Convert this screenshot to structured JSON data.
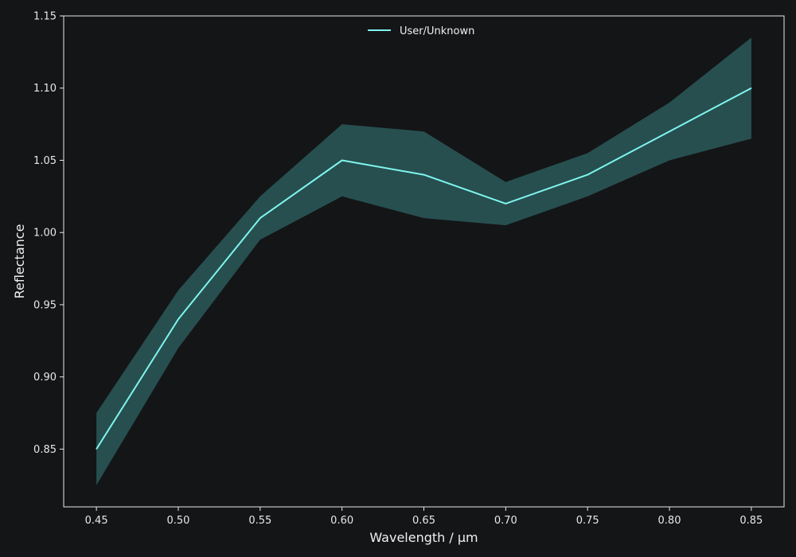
{
  "chart_data": {
    "type": "line",
    "title": "",
    "xlabel": "Wavelength / μm",
    "ylabel": "Reflectance",
    "xlim": [
      0.43,
      0.87
    ],
    "ylim": [
      0.81,
      1.15
    ],
    "x_ticks": [
      "0.45",
      "0.50",
      "0.55",
      "0.60",
      "0.65",
      "0.70",
      "0.75",
      "0.80",
      "0.85"
    ],
    "y_ticks": [
      "0.85",
      "0.90",
      "0.95",
      "1.00",
      "1.05",
      "1.10",
      "1.15"
    ],
    "grid": false,
    "legend_position": "top-center",
    "colors": {
      "background": "#141517",
      "axes": "#e8e8e8",
      "line": "#7ff5f0",
      "band": "#274f4f"
    },
    "series": [
      {
        "name": "User/Unknown",
        "x": [
          0.45,
          0.5,
          0.55,
          0.6,
          0.65,
          0.7,
          0.75,
          0.8,
          0.85
        ],
        "y": [
          0.85,
          0.94,
          1.01,
          1.05,
          1.04,
          1.02,
          1.04,
          1.07,
          1.1
        ],
        "lower": [
          0.825,
          0.92,
          0.995,
          1.025,
          1.01,
          1.005,
          1.025,
          1.05,
          1.065
        ],
        "upper": [
          0.875,
          0.96,
          1.025,
          1.075,
          1.07,
          1.035,
          1.055,
          1.09,
          1.135
        ]
      }
    ]
  }
}
